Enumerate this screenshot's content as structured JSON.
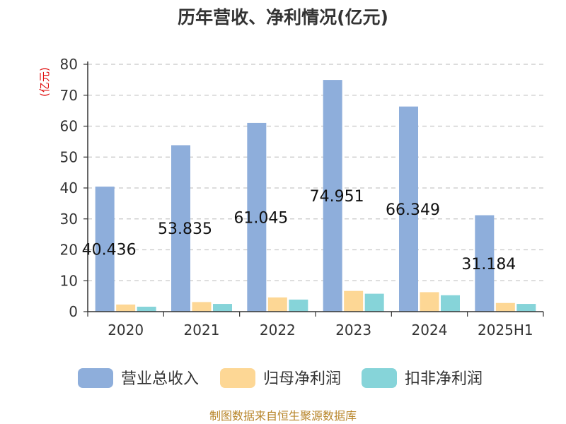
{
  "chart_data": {
    "type": "bar",
    "title": "历年营收、净利情况(亿元)",
    "ylabel": "(亿元)",
    "categories": [
      "2020",
      "2021",
      "2022",
      "2023",
      "2024",
      "2025H1"
    ],
    "series": [
      {
        "name": "营业总收入",
        "color": "#8eaedb",
        "values": [
          40.436,
          53.835,
          61.045,
          74.951,
          66.349,
          31.184
        ]
      },
      {
        "name": "归母净利润",
        "color": "#fdd795",
        "values": [
          2.3,
          3.1,
          4.6,
          6.7,
          6.3,
          2.8
        ]
      },
      {
        "name": "扣非净利润",
        "color": "#86d4d9",
        "values": [
          1.6,
          2.5,
          3.9,
          5.8,
          5.3,
          2.5
        ]
      }
    ],
    "data_labels": [
      "40.436",
      "53.835",
      "61.045",
      "74.951",
      "66.349",
      "31.184"
    ],
    "yticks": [
      "0",
      "10",
      "20",
      "30",
      "40",
      "50",
      "60",
      "70",
      "80"
    ],
    "ylim": [
      0,
      80
    ],
    "grid": true,
    "legend_position": "bottom",
    "source": "制图数据来自恒生聚源数据库"
  }
}
